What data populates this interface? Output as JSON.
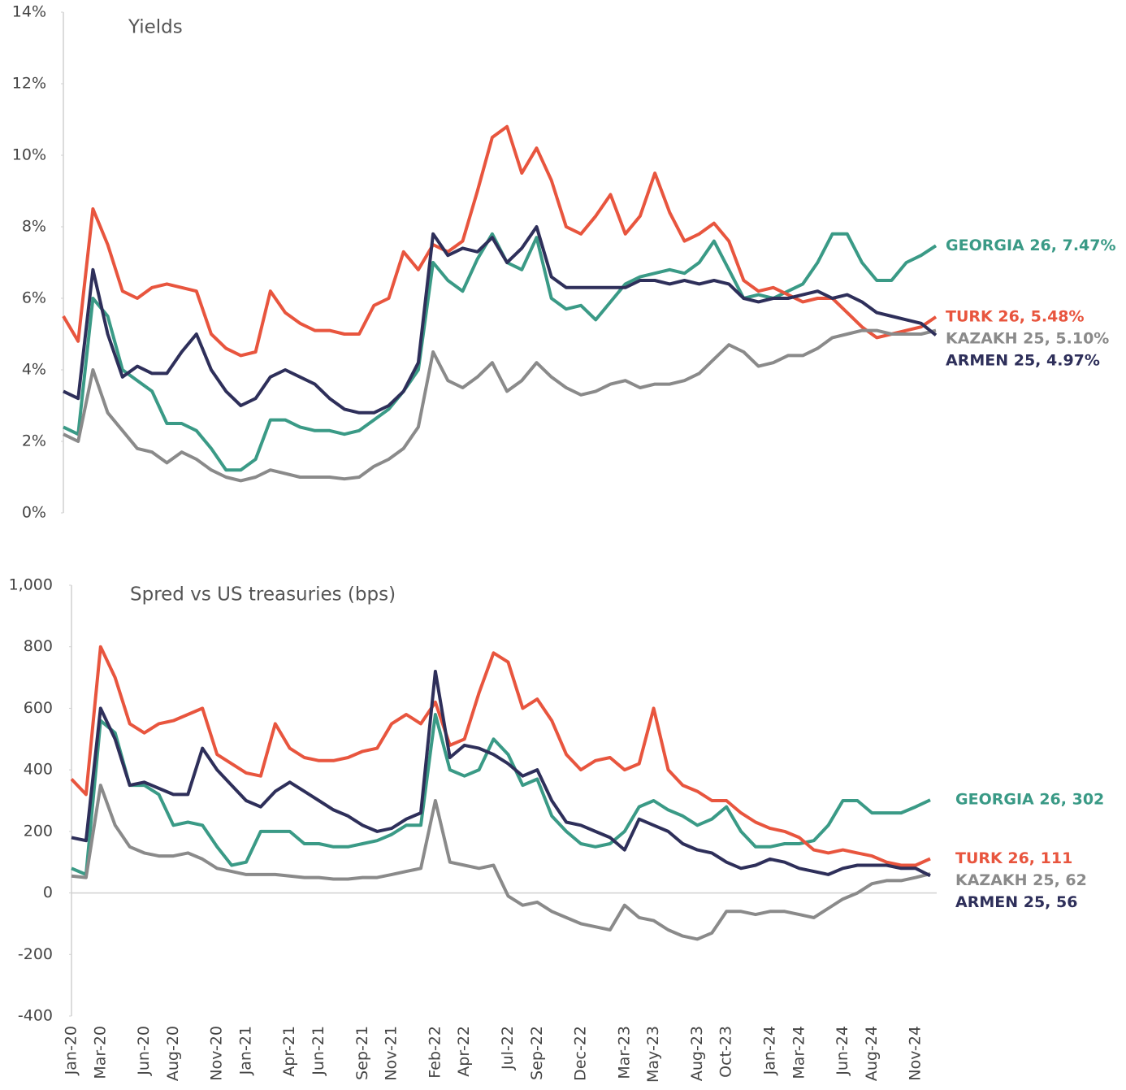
{
  "chart_data": [
    {
      "type": "line",
      "title": "Yields",
      "ylim": [
        0,
        14
      ],
      "yticks": [
        {
          "value": 0,
          "label": "0%"
        },
        {
          "value": 2,
          "label": "2%"
        },
        {
          "value": 4,
          "label": "4%"
        },
        {
          "value": 6,
          "label": "6%"
        },
        {
          "value": 8,
          "label": "8%"
        },
        {
          "value": 10,
          "label": "10%"
        },
        {
          "value": 12,
          "label": "12%"
        },
        {
          "value": 14,
          "label": "14%"
        }
      ],
      "series": [
        {
          "name": "GEORGIA 26, 7.47%",
          "color": "#3a9a86",
          "values": [
            2.4,
            2.2,
            6.0,
            5.5,
            4.0,
            3.7,
            3.4,
            2.5,
            2.5,
            2.3,
            1.8,
            1.2,
            1.2,
            1.5,
            2.6,
            2.6,
            2.4,
            2.3,
            2.3,
            2.2,
            2.3,
            2.6,
            2.9,
            3.4,
            4.0,
            7.0,
            6.5,
            6.2,
            7.1,
            7.8,
            7.0,
            6.8,
            7.7,
            6.0,
            5.7,
            5.8,
            5.4,
            5.9,
            6.4,
            6.6,
            6.7,
            6.8,
            6.7,
            7.0,
            7.6,
            6.8,
            6.0,
            6.1,
            6.0,
            6.2,
            6.4,
            7.0,
            7.8,
            7.8,
            7.0,
            6.5,
            6.5,
            7.0,
            7.2,
            7.47
          ]
        },
        {
          "name": "TURK 26, 5.48%",
          "color": "#e8553e",
          "values": [
            5.5,
            4.8,
            8.5,
            7.5,
            6.2,
            6.0,
            6.3,
            6.4,
            6.3,
            6.2,
            5.0,
            4.6,
            4.4,
            4.5,
            6.2,
            5.6,
            5.3,
            5.1,
            5.1,
            5.0,
            5.0,
            5.8,
            6.0,
            7.3,
            6.8,
            7.5,
            7.3,
            7.6,
            9.0,
            10.5,
            10.8,
            9.5,
            10.2,
            9.3,
            8.0,
            7.8,
            8.3,
            8.9,
            7.8,
            8.3,
            9.5,
            8.4,
            7.6,
            7.8,
            8.1,
            7.6,
            6.5,
            6.2,
            6.3,
            6.1,
            5.9,
            6.0,
            6.0,
            5.6,
            5.2,
            4.9,
            5.0,
            5.1,
            5.2,
            5.48
          ]
        },
        {
          "name": "KAZAKH 25, 5.10%",
          "color": "#8a8a8a",
          "values": [
            2.2,
            2.0,
            4.0,
            2.8,
            2.3,
            1.8,
            1.7,
            1.4,
            1.7,
            1.5,
            1.2,
            1.0,
            0.9,
            1.0,
            1.2,
            1.1,
            1.0,
            1.0,
            1.0,
            0.95,
            1.0,
            1.3,
            1.5,
            1.8,
            2.4,
            4.5,
            3.7,
            3.5,
            3.8,
            4.2,
            3.4,
            3.7,
            4.2,
            3.8,
            3.5,
            3.3,
            3.4,
            3.6,
            3.7,
            3.5,
            3.6,
            3.6,
            3.7,
            3.9,
            4.3,
            4.7,
            4.5,
            4.1,
            4.2,
            4.4,
            4.4,
            4.6,
            4.9,
            5.0,
            5.1,
            5.1,
            5.0,
            5.0,
            5.0,
            5.1
          ]
        },
        {
          "name": "ARMEN 25, 4.97%",
          "color": "#2e2f5a",
          "values": [
            3.4,
            3.2,
            6.8,
            5.0,
            3.8,
            4.1,
            3.9,
            3.9,
            4.5,
            5.0,
            4.0,
            3.4,
            3.0,
            3.2,
            3.8,
            4.0,
            3.8,
            3.6,
            3.2,
            2.9,
            2.8,
            2.8,
            3.0,
            3.4,
            4.2,
            7.8,
            7.2,
            7.4,
            7.3,
            7.7,
            7.0,
            7.4,
            8.0,
            6.6,
            6.3,
            6.3,
            6.3,
            6.3,
            6.3,
            6.5,
            6.5,
            6.4,
            6.5,
            6.4,
            6.5,
            6.4,
            6.0,
            5.9,
            6.0,
            6.0,
            6.1,
            6.2,
            6.0,
            6.1,
            5.9,
            5.6,
            5.5,
            5.4,
            5.3,
            4.97
          ]
        }
      ]
    },
    {
      "type": "line",
      "title": "Spred vs US treasuries (bps)",
      "categories": [
        "Jan-20",
        null,
        "Mar-20",
        null,
        null,
        "Jun-20",
        null,
        "Aug-20",
        null,
        null,
        "Nov-20",
        null,
        "Jan-21",
        null,
        null,
        "Apr-21",
        null,
        "Jun-21",
        null,
        null,
        "Sep-21",
        null,
        "Nov-21",
        null,
        null,
        "Feb-22",
        null,
        "Apr-22",
        null,
        null,
        "Jul-22",
        null,
        "Sep-22",
        null,
        null,
        "Dec-22",
        null,
        null,
        "Mar-23",
        null,
        "May-23",
        null,
        null,
        "Aug-23",
        null,
        "Oct-23",
        null,
        null,
        "Jan-24",
        null,
        "Mar-24",
        null,
        null,
        "Jun-24",
        null,
        "Aug-24",
        null,
        null,
        "Nov-24",
        null
      ],
      "ylim": [
        -400,
        1000
      ],
      "yticks": [
        -400,
        -200,
        0,
        200,
        400,
        600,
        800,
        {
          "value": 1000,
          "label": "1,000"
        }
      ],
      "series": [
        {
          "name": "GEORGIA 26, 302",
          "color": "#3a9a86",
          "values": [
            80,
            60,
            560,
            520,
            350,
            350,
            320,
            220,
            230,
            220,
            150,
            90,
            100,
            200,
            200,
            200,
            160,
            160,
            150,
            150,
            160,
            170,
            190,
            220,
            220,
            580,
            400,
            380,
            400,
            500,
            450,
            350,
            370,
            250,
            200,
            160,
            150,
            160,
            200,
            280,
            300,
            270,
            250,
            220,
            240,
            280,
            200,
            150,
            150,
            160,
            160,
            170,
            220,
            300,
            300,
            260,
            260,
            260,
            280,
            302
          ]
        },
        {
          "name": "TURK 26, 111",
          "color": "#e8553e",
          "values": [
            370,
            320,
            800,
            700,
            550,
            520,
            550,
            560,
            580,
            600,
            450,
            420,
            390,
            380,
            550,
            470,
            440,
            430,
            430,
            440,
            460,
            470,
            550,
            580,
            550,
            620,
            480,
            500,
            650,
            780,
            750,
            600,
            630,
            560,
            450,
            400,
            430,
            440,
            400,
            420,
            600,
            400,
            350,
            330,
            300,
            300,
            260,
            230,
            210,
            200,
            180,
            140,
            130,
            140,
            130,
            120,
            100,
            90,
            90,
            111
          ]
        },
        {
          "name": "KAZAKH 25, 62",
          "color": "#8a8a8a",
          "values": [
            55,
            50,
            350,
            220,
            150,
            130,
            120,
            120,
            130,
            110,
            80,
            70,
            60,
            60,
            60,
            55,
            50,
            50,
            45,
            45,
            50,
            50,
            60,
            70,
            80,
            300,
            100,
            90,
            80,
            90,
            -10,
            -40,
            -30,
            -60,
            -80,
            -100,
            -110,
            -120,
            -40,
            -80,
            -90,
            -120,
            -140,
            -150,
            -130,
            -60,
            -60,
            -70,
            -60,
            -60,
            -70,
            -80,
            -50,
            -20,
            0,
            30,
            40,
            40,
            50,
            62
          ]
        },
        {
          "name": "ARMEN 25, 56",
          "color": "#2e2f5a",
          "values": [
            180,
            170,
            600,
            500,
            350,
            360,
            340,
            320,
            320,
            470,
            400,
            350,
            300,
            280,
            330,
            360,
            330,
            300,
            270,
            250,
            220,
            200,
            210,
            240,
            260,
            720,
            440,
            480,
            470,
            450,
            420,
            380,
            400,
            300,
            230,
            220,
            200,
            180,
            140,
            240,
            220,
            200,
            160,
            140,
            130,
            100,
            80,
            90,
            110,
            100,
            80,
            70,
            60,
            80,
            90,
            90,
            90,
            80,
            80,
            56
          ]
        }
      ]
    }
  ]
}
